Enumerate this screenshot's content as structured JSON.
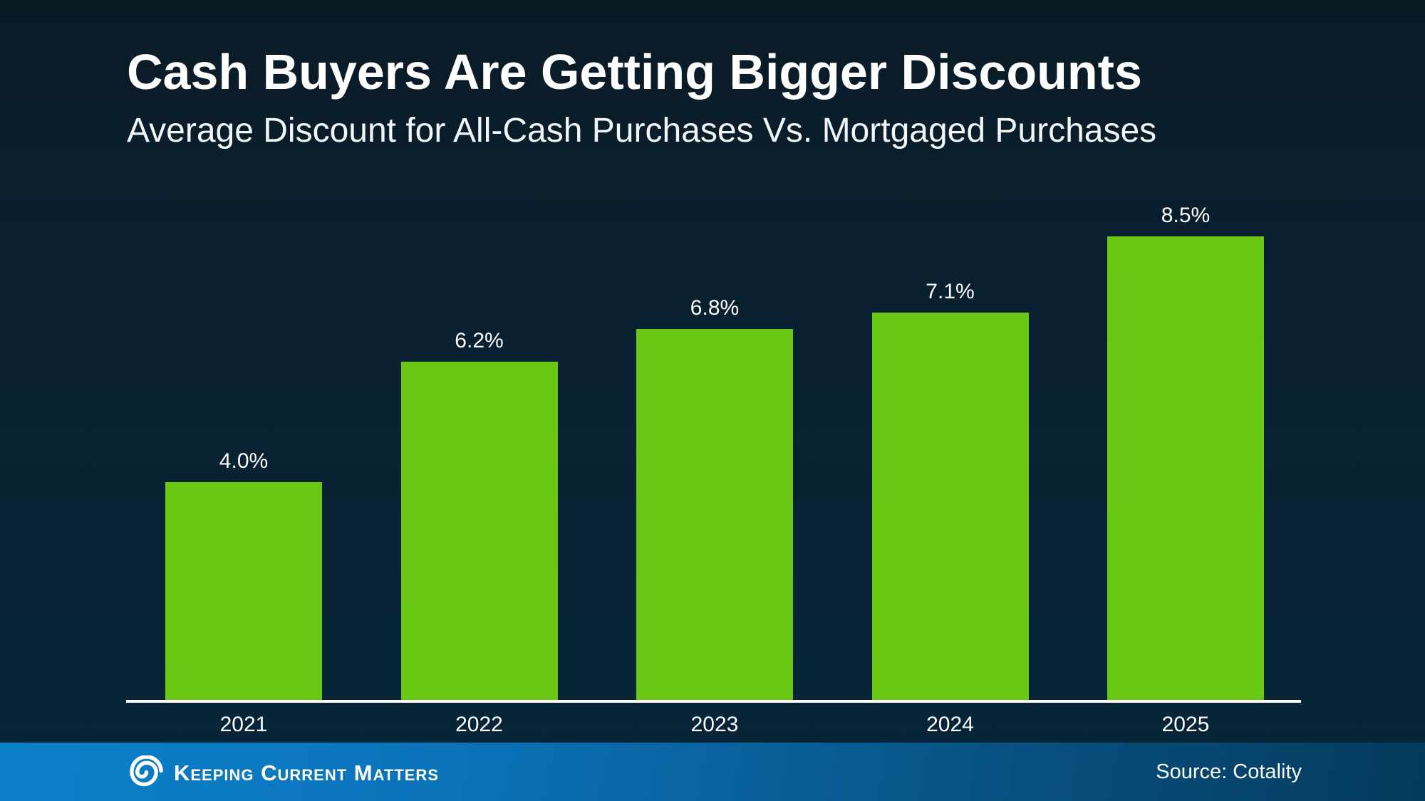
{
  "header": {
    "title": "Cash Buyers Are Getting Bigger Discounts",
    "subtitle": "Average Discount for All-Cash Purchases Vs. Mortgaged Purchases"
  },
  "chart_data": {
    "type": "bar",
    "title": "Cash Buyers Are Getting Bigger Discounts",
    "subtitle": "Average Discount for All-Cash Purchases Vs. Mortgaged Purchases",
    "categories": [
      "2021",
      "2022",
      "2023",
      "2024",
      "2025"
    ],
    "values": [
      4.0,
      6.2,
      6.8,
      7.1,
      8.5
    ],
    "labels": [
      "4.0%",
      "6.2%",
      "6.8%",
      "7.1%",
      "8.5%"
    ],
    "xlabel": "",
    "ylabel": "",
    "ylim": [
      0,
      9
    ],
    "grid": false,
    "legend": null,
    "bar_color": "#69c813",
    "label_color": "#ffffff",
    "axis_line_color": "#ffffff"
  },
  "footer": {
    "brand": "Keeping Current Matters",
    "logo_icon": "kcm-spiral-icon",
    "source": "Source: Cotality",
    "bar_color_left": "#0a80c8",
    "bar_color_right": "#043a5c"
  },
  "colors": {
    "background_top": "#0a1b26",
    "background_bottom": "#07263a",
    "accent_green": "#69c813",
    "text": "#ffffff"
  }
}
